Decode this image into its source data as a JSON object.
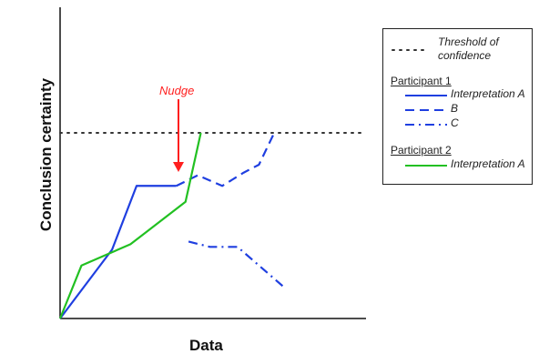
{
  "axes": {
    "x_label": "Data",
    "y_label": "Conclusion certainty"
  },
  "annotation": {
    "label": "Nudge",
    "color": "#ff1f1f"
  },
  "legend": {
    "threshold_label": "Threshold of confidence",
    "threshold_line1": "Threshold of",
    "threshold_line2": "confidence",
    "participant1_heading": "Participant 1",
    "p1_a": "Interpretation A",
    "p1_b": "B",
    "p1_c": "C",
    "participant2_heading": "Participant 2",
    "p2_a": "Interpretation A"
  },
  "colors": {
    "participant1": "#1f3fe0",
    "participant2": "#22c022",
    "threshold": "#333333",
    "axis": "#111111"
  },
  "chart_data": {
    "type": "line",
    "xlabel": "Data",
    "ylabel": "Conclusion certainty",
    "threshold": 0.7,
    "series": [
      {
        "name": "Participant 1 Interpretation A",
        "style": "solid",
        "color": "#1f3fe0",
        "points": [
          [
            0,
            0
          ],
          [
            0.17,
            0.26
          ],
          [
            0.25,
            0.5
          ],
          [
            0.38,
            0.5
          ]
        ]
      },
      {
        "name": "Participant 1 B",
        "style": "dashed",
        "color": "#1f3fe0",
        "points": [
          [
            0.38,
            0.5
          ],
          [
            0.45,
            0.54
          ],
          [
            0.53,
            0.5
          ],
          [
            0.6,
            0.55
          ],
          [
            0.65,
            0.58
          ],
          [
            0.7,
            0.7
          ]
        ]
      },
      {
        "name": "Participant 1 C",
        "style": "dashdot",
        "color": "#1f3fe0",
        "points": [
          [
            0.42,
            0.29
          ],
          [
            0.49,
            0.27
          ],
          [
            0.58,
            0.27
          ],
          [
            0.65,
            0.2
          ],
          [
            0.73,
            0.12
          ]
        ]
      },
      {
        "name": "Participant 2 Interpretation A",
        "style": "solid",
        "color": "#22c022",
        "points": [
          [
            0,
            0
          ],
          [
            0.07,
            0.2
          ],
          [
            0.23,
            0.28
          ],
          [
            0.41,
            0.44
          ],
          [
            0.46,
            0.7
          ]
        ]
      }
    ]
  }
}
